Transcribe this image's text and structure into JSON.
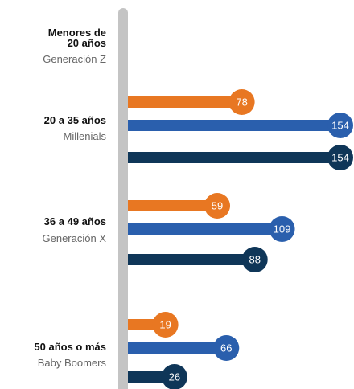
{
  "chart_data": {
    "type": "lollipop",
    "categories": [
      "Menores de 20 años",
      "20 a 35 años",
      "36 a 49 años",
      "50 años o más"
    ],
    "subtitles": [
      "Generación Z",
      "Millenials",
      "Generación X",
      "Baby Boomers"
    ],
    "series": [
      {
        "color": "#e87722",
        "values": [
          null,
          78,
          59,
          19
        ]
      },
      {
        "color": "#2a5fad",
        "values": [
          null,
          154,
          109,
          66
        ]
      },
      {
        "color": "#0f3658",
        "values": [
          null,
          154,
          88,
          26
        ]
      }
    ]
  }
}
